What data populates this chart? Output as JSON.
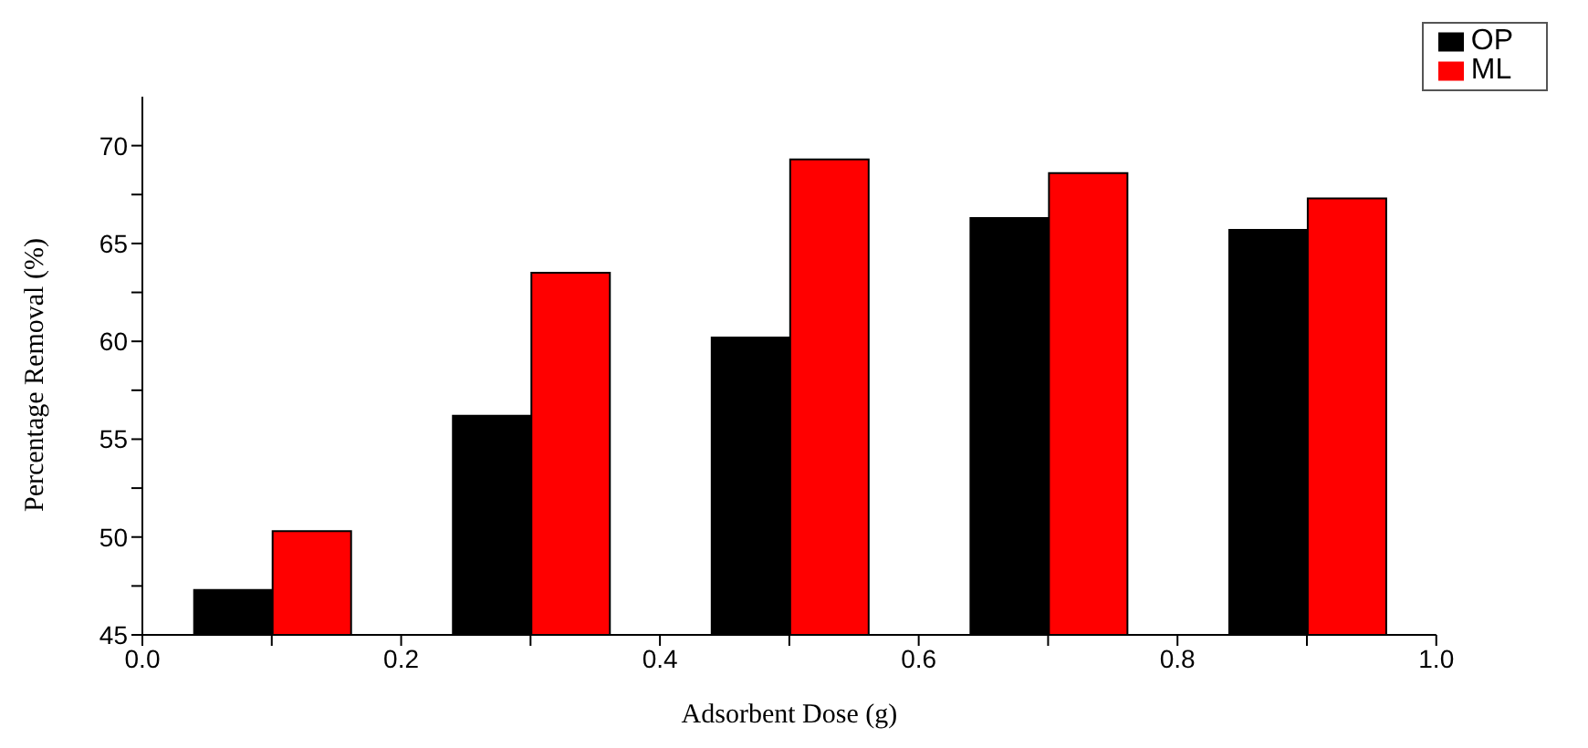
{
  "chart_data": {
    "type": "bar",
    "xlabel": "Adsorbent Dose (g)",
    "ylabel": "Percentage Removal (%)",
    "x": [
      0.1,
      0.3,
      0.5,
      0.7,
      0.9
    ],
    "series": [
      {
        "name": "OP",
        "color": "#000000",
        "values": [
          47.3,
          56.2,
          60.2,
          66.3,
          65.7
        ]
      },
      {
        "name": "ML",
        "color": "#ff0000",
        "values": [
          50.3,
          63.5,
          69.3,
          68.6,
          67.3
        ]
      }
    ],
    "xlim": [
      0,
      1
    ],
    "xticks": [
      {
        "value": 0,
        "label": "0.0"
      },
      {
        "value": 0.1,
        "label": null
      },
      0.2,
      {
        "value": 0.3,
        "label": null
      },
      0.4,
      {
        "value": 0.5,
        "label": null
      },
      0.6,
      {
        "value": 0.7,
        "label": null
      },
      0.8,
      {
        "value": 0.9,
        "label": null
      },
      {
        "value": 1,
        "label": "1.0"
      }
    ],
    "ylim": [
      45,
      72.5
    ],
    "yticks": [
      45,
      {
        "value": 47.5,
        "label": null
      },
      50,
      {
        "value": 52.5,
        "label": null
      },
      55,
      {
        "value": 57.5,
        "label": null
      },
      60,
      {
        "value": 62.5,
        "label": null
      },
      65,
      {
        "value": 67.5,
        "label": null
      },
      70
    ],
    "grid": false,
    "legend": "top right"
  }
}
